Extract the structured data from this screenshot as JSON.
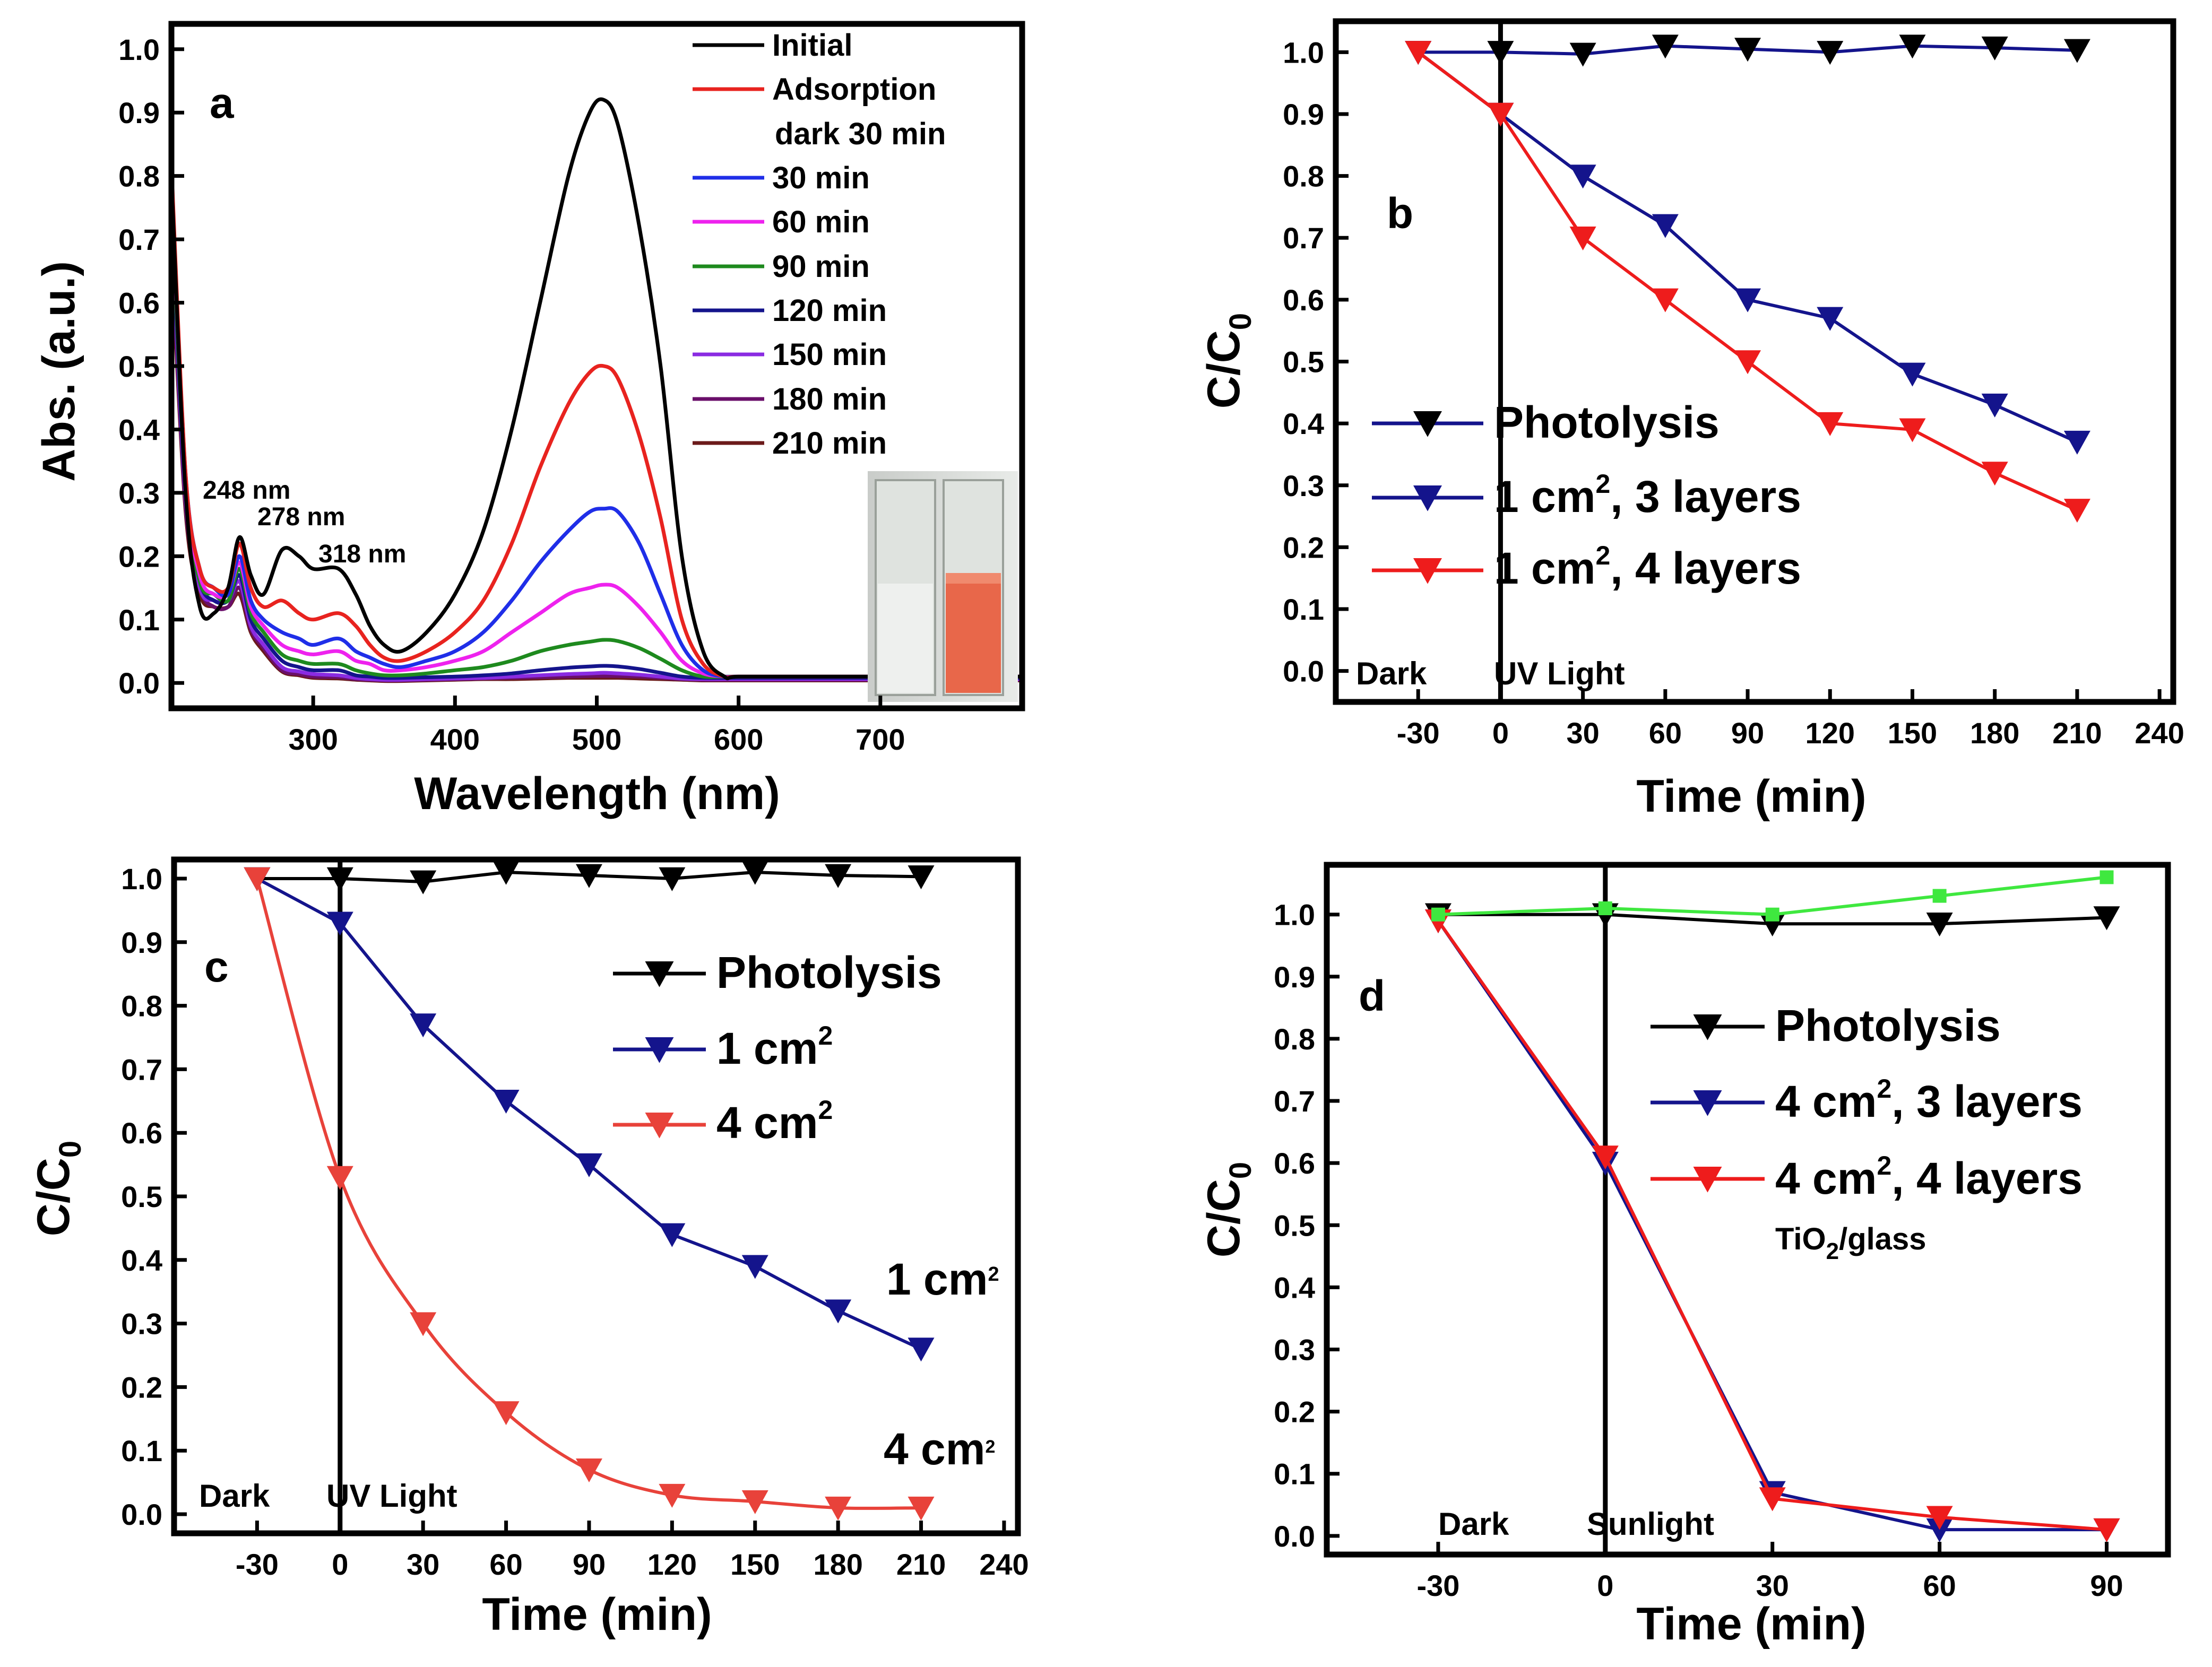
{
  "chart_data": [
    {
      "id": "a",
      "type": "line",
      "panel_label": "a",
      "xlabel": "Wavelength (nm)",
      "ylabel": "Abs. (a.u.)",
      "xlim": [
        200,
        800
      ],
      "ylim": [
        -0.04,
        1.04
      ],
      "xticks": [
        300,
        400,
        500,
        600,
        700
      ],
      "xtick_labels": [
        "300",
        "400",
        "500",
        "600",
        "700"
      ],
      "yticks": [
        0,
        0.1,
        0.2,
        0.3,
        0.4,
        0.5,
        0.6,
        0.7,
        0.8,
        0.9,
        1.0
      ],
      "ytick_labels": [
        "0.0",
        "0.1",
        "0.2",
        "0.3",
        "0.4",
        "0.5",
        "0.6",
        "0.7",
        "0.8",
        "0.9",
        "1.0"
      ],
      "x": [
        200,
        210,
        220,
        230,
        240,
        248,
        256,
        265,
        278,
        290,
        300,
        318,
        330,
        340,
        350,
        362,
        380,
        400,
        420,
        440,
        460,
        480,
        495,
        505,
        515,
        530,
        545,
        560,
        575,
        590,
        600,
        650,
        700,
        800
      ],
      "series": [
        {
          "name": "Initial",
          "color": "#000000",
          "values": [
            0.8,
            0.3,
            0.12,
            0.11,
            0.15,
            0.23,
            0.17,
            0.14,
            0.21,
            0.2,
            0.18,
            0.18,
            0.14,
            0.09,
            0.06,
            0.05,
            0.08,
            0.14,
            0.24,
            0.4,
            0.6,
            0.8,
            0.9,
            0.92,
            0.88,
            0.72,
            0.5,
            0.2,
            0.05,
            0.01,
            0.01,
            0.01,
            0.01,
            0.01
          ]
        },
        {
          "name": "Adsorption dark 30 min",
          "color": "#e8231f",
          "values": [
            0.82,
            0.33,
            0.18,
            0.15,
            0.15,
            0.22,
            0.15,
            0.12,
            0.13,
            0.11,
            0.1,
            0.11,
            0.09,
            0.06,
            0.04,
            0.035,
            0.05,
            0.08,
            0.13,
            0.22,
            0.34,
            0.44,
            0.49,
            0.5,
            0.48,
            0.39,
            0.26,
            0.1,
            0.03,
            0.01,
            0.01,
            0.01,
            0.01,
            0.01
          ]
        },
        {
          "name": "30 min",
          "color": "#1f2ee8",
          "values": [
            0.8,
            0.33,
            0.18,
            0.15,
            0.14,
            0.2,
            0.13,
            0.1,
            0.08,
            0.07,
            0.06,
            0.07,
            0.05,
            0.04,
            0.03,
            0.025,
            0.035,
            0.05,
            0.08,
            0.13,
            0.19,
            0.24,
            0.27,
            0.275,
            0.27,
            0.22,
            0.14,
            0.06,
            0.02,
            0.01,
            0.01,
            0.01,
            0.01,
            0.01
          ]
        },
        {
          "name": "60 min",
          "color": "#ee22ee",
          "values": [
            0.78,
            0.32,
            0.17,
            0.14,
            0.14,
            0.19,
            0.12,
            0.09,
            0.06,
            0.05,
            0.045,
            0.05,
            0.035,
            0.03,
            0.02,
            0.02,
            0.025,
            0.035,
            0.05,
            0.08,
            0.11,
            0.14,
            0.15,
            0.155,
            0.15,
            0.12,
            0.08,
            0.035,
            0.015,
            0.01,
            0.01,
            0.01,
            0.01,
            0.01
          ]
        },
        {
          "name": "90 min",
          "color": "#1e8a1e",
          "values": [
            0.76,
            0.31,
            0.16,
            0.14,
            0.13,
            0.18,
            0.11,
            0.08,
            0.045,
            0.035,
            0.03,
            0.03,
            0.02,
            0.015,
            0.012,
            0.012,
            0.015,
            0.02,
            0.025,
            0.035,
            0.05,
            0.06,
            0.065,
            0.068,
            0.066,
            0.055,
            0.038,
            0.02,
            0.01,
            0.01,
            0.01,
            0.01,
            0.01,
            0.01
          ]
        },
        {
          "name": "120 min",
          "color": "#14148c",
          "values": [
            0.74,
            0.3,
            0.16,
            0.13,
            0.13,
            0.17,
            0.1,
            0.07,
            0.035,
            0.025,
            0.02,
            0.02,
            0.012,
            0.01,
            0.008,
            0.008,
            0.009,
            0.01,
            0.012,
            0.015,
            0.02,
            0.024,
            0.026,
            0.027,
            0.026,
            0.022,
            0.016,
            0.01,
            0.008,
            0.008,
            0.008,
            0.008,
            0.008,
            0.008
          ]
        },
        {
          "name": "150 min",
          "color": "#8a2be2",
          "values": [
            0.72,
            0.29,
            0.15,
            0.13,
            0.13,
            0.16,
            0.09,
            0.06,
            0.025,
            0.018,
            0.014,
            0.012,
            0.008,
            0.006,
            0.005,
            0.005,
            0.006,
            0.007,
            0.008,
            0.01,
            0.012,
            0.014,
            0.015,
            0.016,
            0.015,
            0.013,
            0.01,
            0.007,
            0.006,
            0.006,
            0.006,
            0.006,
            0.006,
            0.006
          ]
        },
        {
          "name": "180 min",
          "color": "#6a0f6a",
          "values": [
            0.7,
            0.28,
            0.15,
            0.12,
            0.12,
            0.15,
            0.085,
            0.055,
            0.02,
            0.014,
            0.01,
            0.009,
            0.006,
            0.005,
            0.004,
            0.004,
            0.005,
            0.006,
            0.007,
            0.008,
            0.009,
            0.01,
            0.011,
            0.011,
            0.011,
            0.01,
            0.008,
            0.006,
            0.005,
            0.005,
            0.005,
            0.005,
            0.005,
            0.005
          ]
        },
        {
          "name": "210 min",
          "color": "#6b1a1a",
          "values": [
            0.68,
            0.27,
            0.14,
            0.12,
            0.12,
            0.14,
            0.08,
            0.05,
            0.018,
            0.012,
            0.008,
            0.007,
            0.005,
            0.004,
            0.003,
            0.003,
            0.004,
            0.005,
            0.006,
            0.006,
            0.007,
            0.008,
            0.008,
            0.008,
            0.008,
            0.007,
            0.006,
            0.005,
            0.004,
            0.004,
            0.004,
            0.004,
            0.004,
            0.004
          ]
        }
      ],
      "legend": [
        "Initial",
        "Adsorption",
        "dark 30 min",
        "30 min",
        "60 min",
        "90 min",
        "120 min",
        "150 min",
        "180 min",
        "210 min"
      ],
      "annotations": [
        "248 nm",
        "278 nm",
        "318 nm"
      ]
    },
    {
      "id": "b",
      "type": "line",
      "panel_label": "b",
      "xlabel": "Time (min)",
      "ylabel": "C/C",
      "ylabel_sub": "0",
      "xlim": [
        -60,
        245
      ],
      "ylim": [
        -0.05,
        1.05
      ],
      "xticks": [
        -30,
        0,
        30,
        60,
        90,
        120,
        150,
        180,
        210,
        240
      ],
      "xtick_labels": [
        "-30",
        "0",
        "30",
        "60",
        "90",
        "120",
        "150",
        "180",
        "210",
        "240"
      ],
      "yticks": [
        0,
        0.1,
        0.2,
        0.3,
        0.4,
        0.5,
        0.6,
        0.7,
        0.8,
        0.9,
        1.0
      ],
      "ytick_labels": [
        "0.0",
        "0.1",
        "0.2",
        "0.3",
        "0.4",
        "0.5",
        "0.6",
        "0.7",
        "0.8",
        "0.9",
        "1.0"
      ],
      "x": [
        -30,
        0,
        30,
        60,
        90,
        120,
        150,
        180,
        210
      ],
      "series": [
        {
          "name": "Photolysis",
          "color": "#000000",
          "line_color": "#14148c",
          "values": [
            1.0,
            1.0,
            0.997,
            1.01,
            1.005,
            1.0,
            1.01,
            1.007,
            1.003
          ]
        },
        {
          "name": "1 cm², 3 layers",
          "color": "#14148c",
          "values": [
            1.0,
            0.9,
            0.8,
            0.72,
            0.6,
            0.57,
            0.48,
            0.43,
            0.37
          ]
        },
        {
          "name": "1 cm², 4 layers",
          "color": "#ee1c1c",
          "values": [
            1.0,
            0.9,
            0.7,
            0.6,
            0.5,
            0.4,
            0.39,
            0.32,
            0.26
          ]
        }
      ],
      "legend": {
        "photolysis": "Photolysis",
        "l3": "1 cm",
        "l3_sup": "2",
        "l3_rest": ", 3 layers",
        "l4": "1 cm",
        "l4_sup": "2",
        "l4_rest": ", 4 layers"
      },
      "regions": [
        "Dark",
        "UV Light"
      ]
    },
    {
      "id": "c",
      "type": "line",
      "panel_label": "c",
      "xlabel": "Time (min)",
      "ylabel": "C/C",
      "ylabel_sub": "0",
      "xlim": [
        -60,
        245
      ],
      "ylim": [
        -0.03,
        1.03
      ],
      "xticks": [
        -30,
        0,
        30,
        60,
        90,
        120,
        150,
        180,
        210,
        240
      ],
      "xtick_labels": [
        "-30",
        "0",
        "30",
        "60",
        "90",
        "120",
        "150",
        "180",
        "210",
        "240"
      ],
      "yticks": [
        0,
        0.1,
        0.2,
        0.3,
        0.4,
        0.5,
        0.6,
        0.7,
        0.8,
        0.9,
        1.0
      ],
      "ytick_labels": [
        "0.0",
        "0.1",
        "0.2",
        "0.3",
        "0.4",
        "0.5",
        "0.6",
        "0.7",
        "0.8",
        "0.9",
        "1.0"
      ],
      "x": [
        -30,
        0,
        30,
        60,
        90,
        120,
        150,
        180,
        210
      ],
      "series": [
        {
          "name": "Photolysis",
          "color": "#000000",
          "values": [
            1.0,
            1.0,
            0.995,
            1.01,
            1.005,
            1.0,
            1.01,
            1.005,
            1.003
          ]
        },
        {
          "name": "1 cm²",
          "color": "#14148c",
          "values": [
            1.0,
            0.93,
            0.77,
            0.65,
            0.55,
            0.44,
            0.39,
            0.32,
            0.26
          ]
        },
        {
          "name": "4 cm²",
          "color": "#e8423a",
          "smooth": true,
          "values": [
            1.0,
            0.53,
            0.3,
            0.16,
            0.07,
            0.03,
            0.02,
            0.01,
            0.01
          ]
        }
      ],
      "legend": {
        "photolysis": "Photolysis",
        "s1": "1 cm",
        "s1_sup": "2",
        "s4": "4 cm",
        "s4_sup": "2"
      },
      "annotations": {
        "a1": "1 cm",
        "a1_sup": "2",
        "a4": "4 cm",
        "a4_sup": "2"
      },
      "regions": [
        "Dark",
        "UV Light"
      ]
    },
    {
      "id": "d",
      "type": "line",
      "panel_label": "d",
      "xlabel": "Time (min)",
      "ylabel": "C/C",
      "ylabel_sub": "0",
      "xlim": [
        -50,
        101
      ],
      "ylim": [
        -0.03,
        1.08
      ],
      "xticks": [
        -30,
        0,
        30,
        60,
        90
      ],
      "xtick_labels": [
        "-30",
        "0",
        "30",
        "60",
        "90"
      ],
      "yticks": [
        0,
        0.1,
        0.2,
        0.3,
        0.4,
        0.5,
        0.6,
        0.7,
        0.8,
        0.9,
        1.0
      ],
      "ytick_labels": [
        "0.0",
        "0.1",
        "0.2",
        "0.3",
        "0.4",
        "0.5",
        "0.6",
        "0.7",
        "0.8",
        "0.9",
        "1.0"
      ],
      "x": [
        -30,
        0,
        30,
        60,
        90
      ],
      "series": [
        {
          "name": "Photolysis",
          "color": "#000000",
          "values": [
            1.0,
            1.0,
            0.985,
            0.985,
            0.995
          ]
        },
        {
          "name": "4 cm², 3 layers",
          "color": "#14148c",
          "values": [
            0.99,
            0.6,
            0.07,
            0.01,
            0.01
          ]
        },
        {
          "name": "4 cm², 4 layers",
          "color": "#ee1c1c",
          "values": [
            0.99,
            0.61,
            0.06,
            0.03,
            0.01
          ]
        },
        {
          "name": "TiO₂/glass",
          "color": "#3fe83f",
          "marker": "square",
          "values": [
            1.0,
            1.01,
            1.0,
            1.03,
            1.06
          ]
        }
      ],
      "legend": {
        "photolysis": "Photolysis",
        "l3": "4 cm",
        "l3_sup": "2",
        "l3_rest": ", 3 layers",
        "l4": "4 cm",
        "l4_sup": "2",
        "l4_rest": ", 4 layers",
        "tio2": "TiO",
        "tio2_sub": "2",
        "tio2_rest": "/glass"
      },
      "regions": [
        "Dark",
        "Sunlight"
      ]
    }
  ]
}
